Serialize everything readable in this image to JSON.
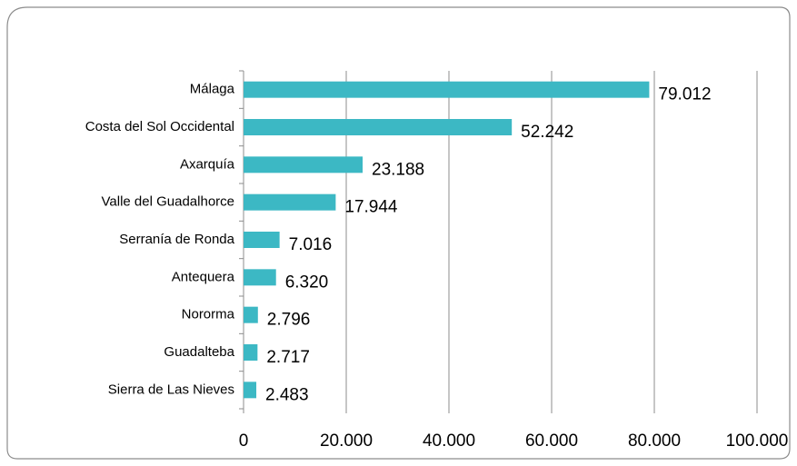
{
  "chart_data": {
    "type": "barh",
    "categories": [
      "Málaga",
      "Costa del Sol Occidental",
      "Axarquía",
      "Valle del Guadalhorce",
      "Serranía de Ronda",
      "Antequera",
      "Nororma",
      "Guadalteba",
      "Sierra de Las Nieves"
    ],
    "values": [
      79012,
      52242,
      23188,
      17944,
      7016,
      6320,
      2796,
      2717,
      2483
    ],
    "value_labels": [
      "79.012",
      "52.242",
      "23.188",
      "17.944",
      "7.016",
      "6.320",
      "2.796",
      "2.717",
      "2.483"
    ],
    "color": "#3cb8c4",
    "xlim": [
      0,
      100000
    ],
    "xticks": [
      0,
      {
        "value": 20000,
        "label": "20.000"
      },
      {
        "value": 40000,
        "label": "40.000"
      },
      {
        "value": 60000,
        "label": "60.000"
      },
      {
        "value": 80000,
        "label": "80.000"
      },
      {
        "value": 100000,
        "label": "100.000"
      }
    ],
    "grid": true
  }
}
